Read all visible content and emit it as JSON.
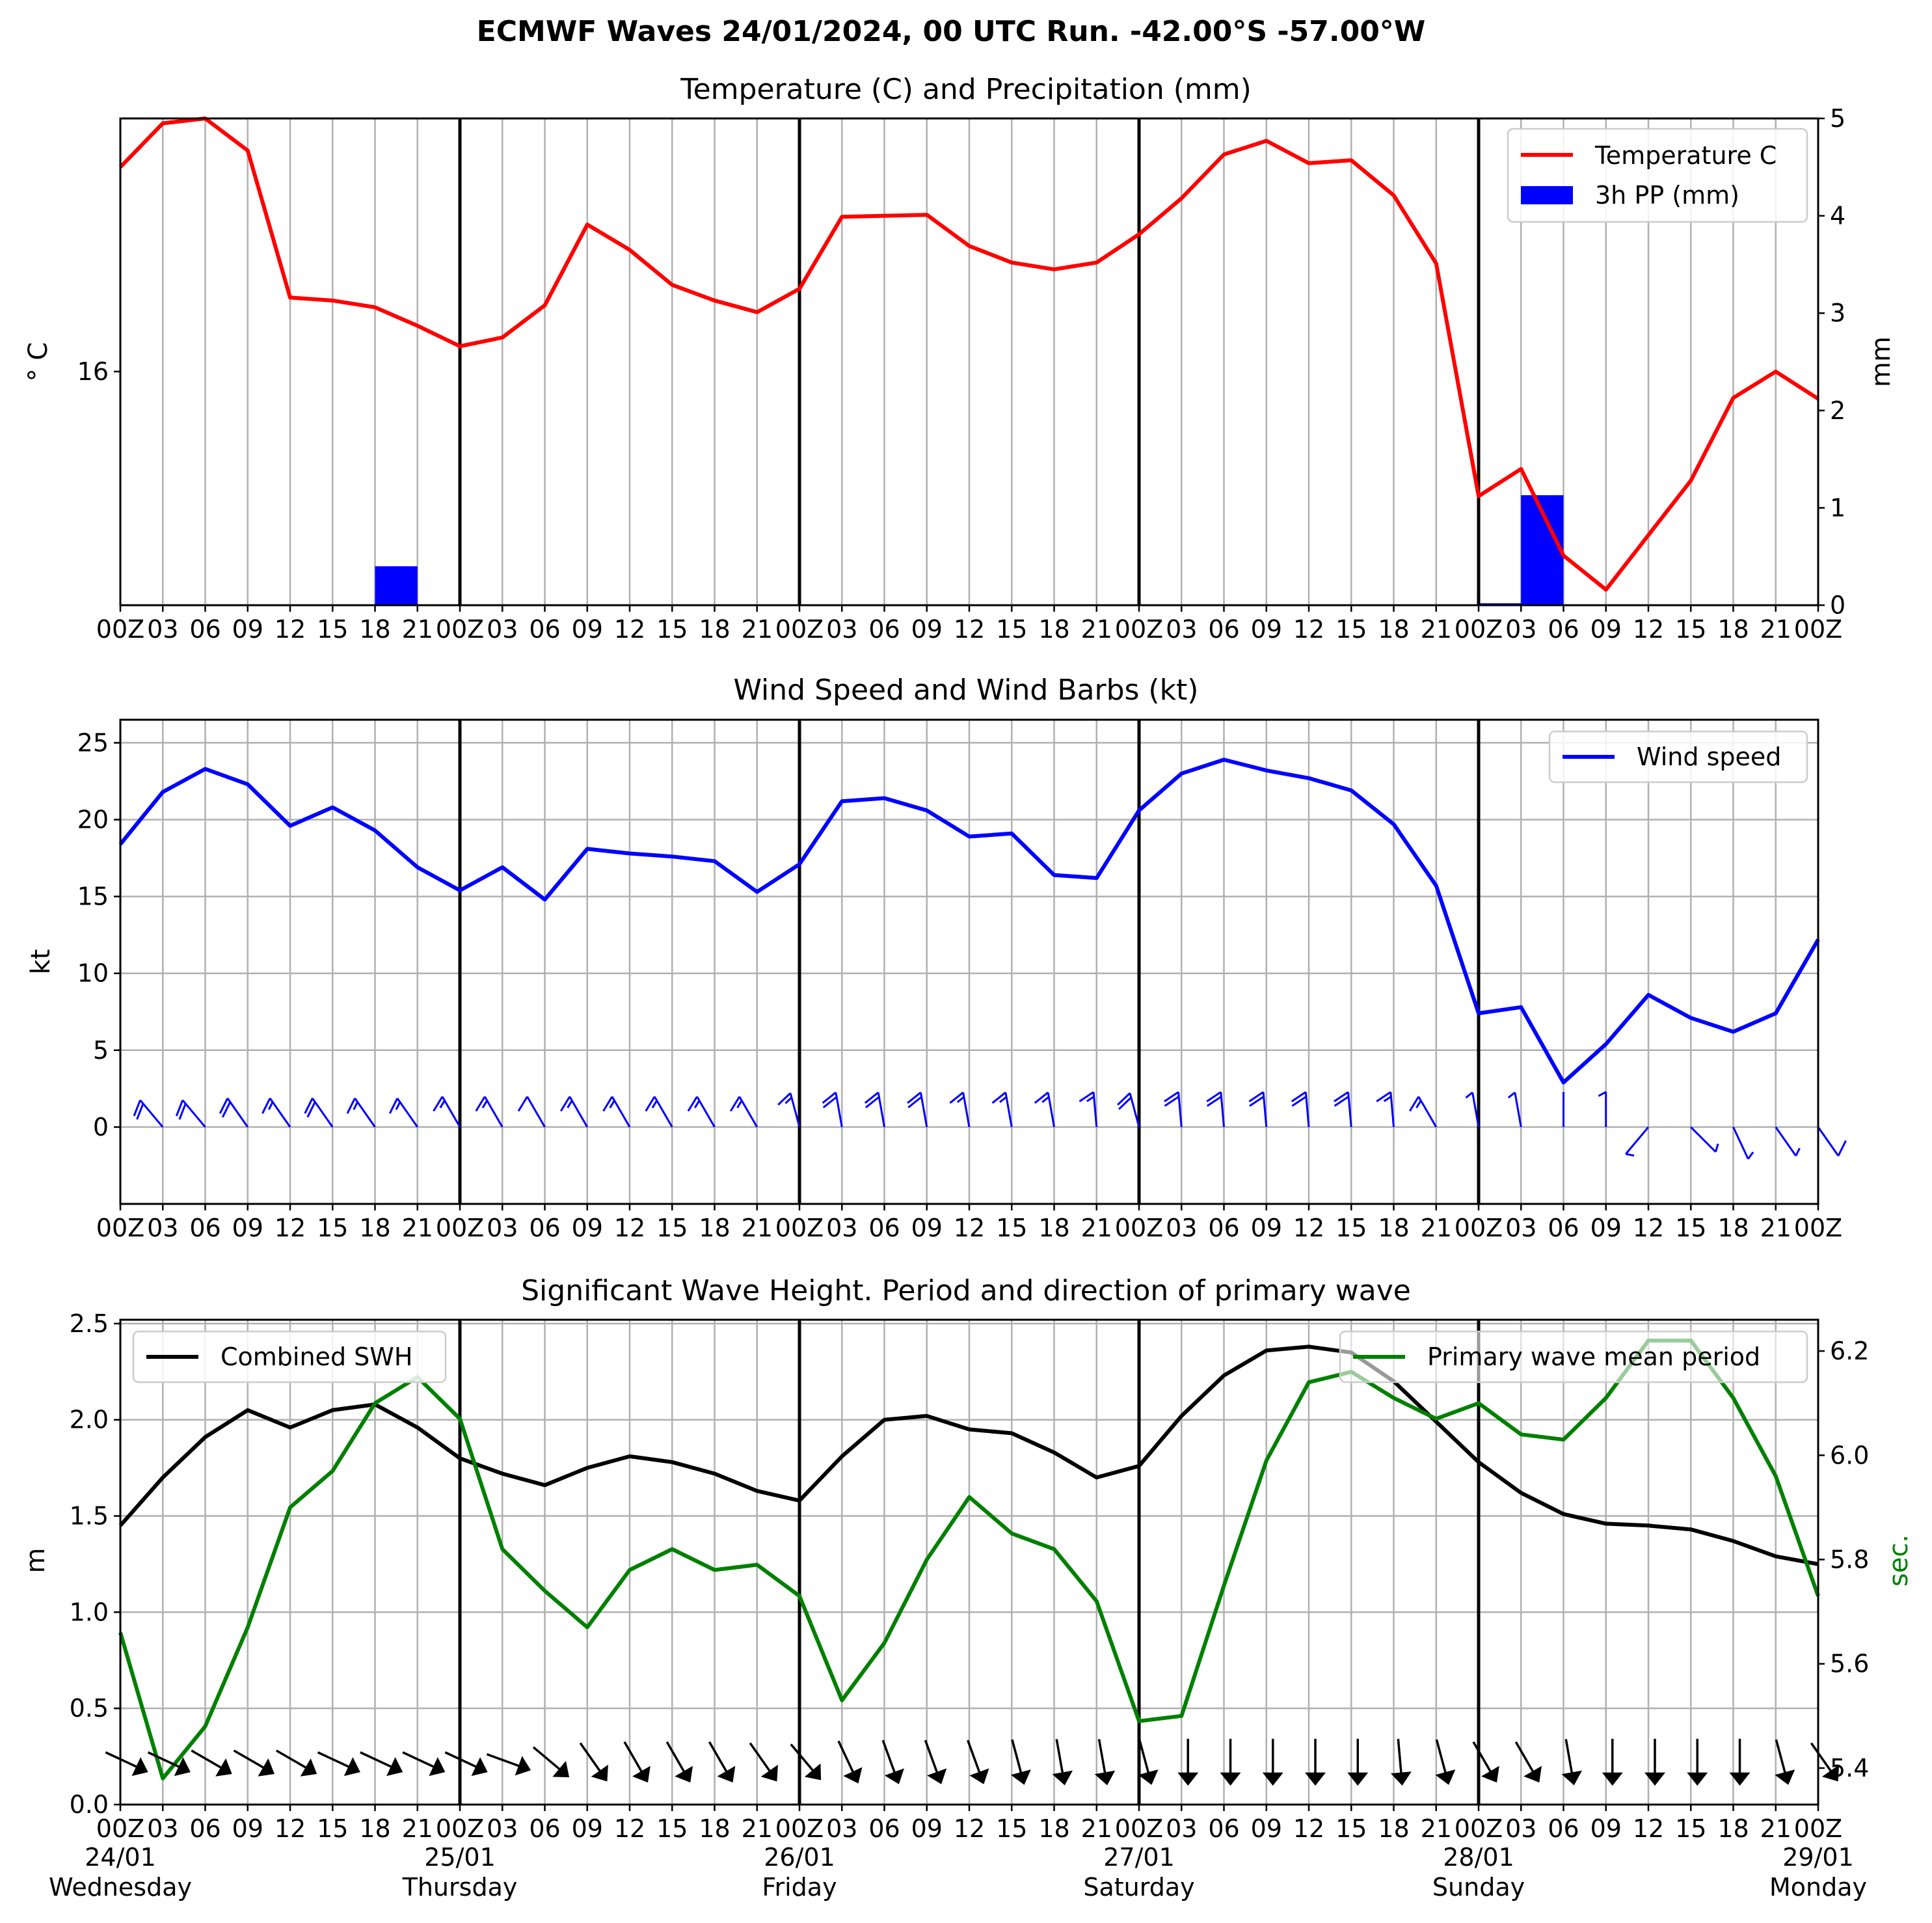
{
  "page_title": "ECMWF Waves 24/01/2024, 00 UTC Run. -42.00°S -57.00°W",
  "colors": {
    "temperature": "#ff0000",
    "precip": "#0000ff",
    "wind": "#0000ff",
    "swh": "#000000",
    "period": "#008000",
    "grid": "#b0b0b0"
  },
  "chart_data": [
    {
      "id": "temp-precip",
      "type": "line",
      "title": "Temperature (C) and Precipitation (mm)",
      "ylabel": "$^\\circ$C",
      "ylabel_display": "° C",
      "y2label": "mm",
      "x_hours": [
        0,
        3,
        6,
        9,
        12,
        15,
        18,
        21,
        24,
        27,
        30,
        33,
        36,
        39,
        42,
        45,
        48,
        51,
        54,
        57,
        60,
        63,
        66,
        69,
        72,
        75,
        78,
        81,
        84,
        87,
        90,
        93,
        96,
        99,
        102,
        105,
        108,
        111,
        114,
        117,
        120
      ],
      "xlim": [
        0,
        120
      ],
      "ylim": [
        13.6,
        18.6
      ],
      "yticks": [
        16
      ],
      "ytick_labels": [
        "16"
      ],
      "y2lim": [
        0,
        5
      ],
      "y2ticks": [
        0,
        1,
        2,
        3,
        4,
        5
      ],
      "y2tick_labels": [
        "0",
        "1",
        "2",
        "3",
        "4",
        "5"
      ],
      "series": [
        {
          "name": "Temperature C",
          "axis": "left",
          "color": "#ff0000",
          "values": [
            18.1,
            18.55,
            18.6,
            18.27,
            16.76,
            16.73,
            16.66,
            16.47,
            16.26,
            16.35,
            16.68,
            17.51,
            17.25,
            16.89,
            16.73,
            16.61,
            16.85,
            17.59,
            17.6,
            17.61,
            17.29,
            17.12,
            17.05,
            17.12,
            17.41,
            17.78,
            18.23,
            18.37,
            18.14,
            18.17,
            17.81,
            17.11,
            14.72,
            15.0,
            14.11,
            13.76,
            14.32,
            14.88,
            15.73,
            16.0,
            15.72
          ]
        },
        {
          "name": "3h PP (mm)",
          "axis": "right",
          "type": "bar",
          "color": "#0000ff",
          "bars": [
            {
              "start": 18,
              "end": 21,
              "value": 0.4
            },
            {
              "start": 96,
              "end": 99,
              "value": 0.02
            },
            {
              "start": 99,
              "end": 102,
              "value": 1.13
            }
          ]
        }
      ],
      "legend": {
        "position": "upper right",
        "entries": [
          "Temperature C",
          "3h PP (mm)"
        ]
      }
    },
    {
      "id": "wind",
      "type": "line",
      "title": "Wind Speed and Wind Barbs (kt)",
      "ylabel": "kt",
      "x_hours": [
        0,
        3,
        6,
        9,
        12,
        15,
        18,
        21,
        24,
        27,
        30,
        33,
        36,
        39,
        42,
        45,
        48,
        51,
        54,
        57,
        60,
        63,
        66,
        69,
        72,
        75,
        78,
        81,
        84,
        87,
        90,
        93,
        96,
        99,
        102,
        105,
        108,
        111,
        114,
        117,
        120
      ],
      "xlim": [
        0,
        120
      ],
      "ylim": [
        -5,
        26.5
      ],
      "yticks": [
        0,
        5,
        10,
        15,
        20,
        25
      ],
      "ytick_labels": [
        "0",
        "5",
        "10",
        "15",
        "20",
        "25"
      ],
      "series": [
        {
          "name": "Wind speed",
          "color": "#0000ff",
          "values": [
            18.4,
            21.8,
            23.3,
            22.3,
            19.6,
            20.8,
            19.3,
            16.9,
            15.4,
            16.9,
            14.8,
            18.1,
            17.8,
            17.6,
            17.3,
            15.3,
            17.1,
            21.2,
            21.4,
            20.6,
            18.9,
            19.1,
            16.4,
            16.2,
            20.6,
            23.0,
            23.9,
            23.2,
            22.7,
            21.9,
            19.7,
            15.7,
            7.4,
            7.8,
            2.9,
            5.4,
            8.6,
            7.1,
            6.2,
            7.4,
            12.2
          ]
        }
      ],
      "barb_angle_deg": [
        -40,
        -40,
        -40,
        -35,
        -35,
        -35,
        -35,
        -35,
        -30,
        -30,
        -30,
        -30,
        -30,
        -30,
        -30,
        -30,
        -15,
        -10,
        -10,
        -10,
        -10,
        -10,
        -10,
        -5,
        -15,
        -5,
        -5,
        -5,
        -5,
        -5,
        -5,
        -30,
        -10,
        -10,
        0,
        0,
        -140,
        135,
        155,
        145,
        145
      ],
      "legend": {
        "position": "upper right",
        "entries": [
          "Wind speed"
        ]
      }
    },
    {
      "id": "waves",
      "type": "line",
      "title": "Significant Wave Height. Period and direction of primary wave",
      "ylabel": "m",
      "y2label": "sec.",
      "x_hours": [
        0,
        3,
        6,
        9,
        12,
        15,
        18,
        21,
        24,
        27,
        30,
        33,
        36,
        39,
        42,
        45,
        48,
        51,
        54,
        57,
        60,
        63,
        66,
        69,
        72,
        75,
        78,
        81,
        84,
        87,
        90,
        93,
        96,
        99,
        102,
        105,
        108,
        111,
        114,
        117,
        120
      ],
      "xlim": [
        0,
        120
      ],
      "ylim": [
        0,
        2.52
      ],
      "yticks": [
        0,
        0.5,
        1.0,
        1.5,
        2.0,
        2.5
      ],
      "ytick_labels": [
        "0.0",
        "0.5",
        "1.0",
        "1.5",
        "2.0",
        "2.5"
      ],
      "y2lim": [
        5.33,
        6.26
      ],
      "y2ticks": [
        5.4,
        5.6,
        5.8,
        6.0,
        6.2
      ],
      "y2tick_labels": [
        "5.4",
        "5.6",
        "5.8",
        "6.0",
        "6.2"
      ],
      "series": [
        {
          "name": "Combined SWH",
          "axis": "left",
          "color": "#000000",
          "values": [
            1.45,
            1.7,
            1.91,
            2.05,
            1.96,
            2.05,
            2.08,
            1.96,
            1.8,
            1.72,
            1.66,
            1.75,
            1.81,
            1.78,
            1.72,
            1.63,
            1.58,
            1.81,
            2.0,
            2.02,
            1.95,
            1.93,
            1.83,
            1.7,
            1.76,
            2.02,
            2.23,
            2.36,
            2.38,
            2.35,
            2.2,
            1.99,
            1.78,
            1.62,
            1.51,
            1.46,
            1.45,
            1.43,
            1.37,
            1.29,
            1.25
          ]
        },
        {
          "name": "Primary wave mean period",
          "axis": "right",
          "color": "#008000",
          "values": [
            5.66,
            5.38,
            5.48,
            5.67,
            5.9,
            5.97,
            6.1,
            6.15,
            6.07,
            5.82,
            5.74,
            5.67,
            5.78,
            5.82,
            5.78,
            5.79,
            5.73,
            5.53,
            5.64,
            5.8,
            5.92,
            5.85,
            5.82,
            5.72,
            5.49,
            5.5,
            5.75,
            5.99,
            6.14,
            6.16,
            6.11,
            6.07,
            6.1,
            6.04,
            6.03,
            6.11,
            6.22,
            6.22,
            6.11,
            5.96,
            5.73
          ]
        }
      ],
      "arrow_angle_deg": [
        25,
        25,
        30,
        30,
        30,
        25,
        25,
        25,
        25,
        20,
        40,
        55,
        60,
        60,
        60,
        55,
        50,
        65,
        70,
        70,
        70,
        75,
        80,
        80,
        75,
        90,
        90,
        90,
        90,
        90,
        85,
        75,
        60,
        60,
        80,
        90,
        90,
        90,
        90,
        75,
        55
      ],
      "legend": [
        {
          "position": "upper left",
          "entries": [
            "Combined SWH"
          ]
        },
        {
          "position": "upper right",
          "entries": [
            "Primary wave mean period"
          ]
        }
      ]
    }
  ],
  "x_axis": {
    "hour_labels_first": [
      "00Z",
      "03",
      "06",
      "09",
      "12",
      "15",
      "18",
      "21"
    ],
    "hour_labels_last": [
      "00Z"
    ],
    "day_labels": [
      {
        "date": "24/01",
        "weekday": "Wednesday"
      },
      {
        "date": "25/01",
        "weekday": "Thursday"
      },
      {
        "date": "26/01",
        "weekday": "Friday"
      },
      {
        "date": "27/01",
        "weekday": "Saturday"
      },
      {
        "date": "28/01",
        "weekday": "Sunday"
      },
      {
        "date": "29/01",
        "weekday": "Monday"
      }
    ]
  }
}
